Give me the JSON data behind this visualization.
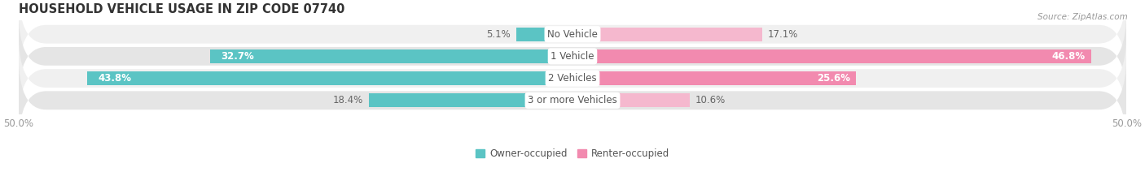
{
  "title": "HOUSEHOLD VEHICLE USAGE IN ZIP CODE 07740",
  "source": "Source: ZipAtlas.com",
  "categories": [
    "No Vehicle",
    "1 Vehicle",
    "2 Vehicles",
    "3 or more Vehicles"
  ],
  "owner_values": [
    5.1,
    32.7,
    43.8,
    18.4
  ],
  "renter_values": [
    17.1,
    46.8,
    25.6,
    10.6
  ],
  "owner_color": "#5BC4C4",
  "renter_color": "#F28AAF",
  "renter_light_color": "#F5B8CE",
  "background_color": "#FFFFFF",
  "row_light_color": "#F0F0F0",
  "row_dark_color": "#E5E5E5",
  "xlim": [
    -50,
    50
  ],
  "title_fontsize": 10.5,
  "label_fontsize": 8.5,
  "tick_fontsize": 8.5,
  "bar_height": 0.62,
  "legend_owner": "Owner-occupied",
  "legend_renter": "Renter-occupied"
}
